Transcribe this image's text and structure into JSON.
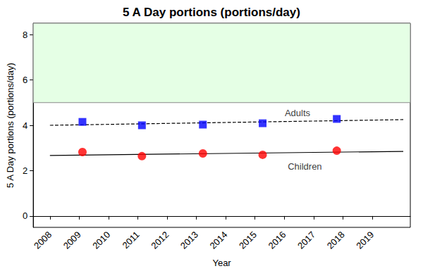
{
  "chart_data": {
    "type": "scatter",
    "title": "5 A Day portions (portions/day)",
    "x_label": "Year",
    "y_label": "5 A Day portions (portions/day)",
    "xlim": [
      2007.43,
      2020.3
    ],
    "xticks": [
      2008,
      2009,
      2010,
      2011,
      2012,
      2013,
      2014,
      2015,
      2016,
      2017,
      2018,
      2019
    ],
    "ylim": [
      -0.5,
      8.5
    ],
    "yticks": [
      0,
      2,
      4,
      6,
      8
    ],
    "grid": false,
    "band": {
      "from": 5,
      "to": 8.5,
      "color": "#e5ffe5"
    },
    "series": [
      {
        "type": "scatter",
        "marker": "square",
        "color": "#0000ff",
        "x": [
          2009.11,
          2011.14,
          2013.22,
          2015.26,
          2017.79
        ],
        "values": [
          4.15,
          4.0,
          4.03,
          4.09,
          4.28
        ]
      },
      {
        "type": "line",
        "line_style": "dashed",
        "color": "#000000",
        "x": [
          2008,
          2020.06
        ],
        "values": [
          4.0,
          4.25
        ]
      },
      {
        "type": "scatter",
        "marker": "circle",
        "color": "#ff0000",
        "x": [
          2009.11,
          2011.14,
          2013.22,
          2015.26,
          2017.79
        ],
        "values": [
          2.82,
          2.64,
          2.76,
          2.7,
          2.88
        ]
      },
      {
        "type": "line",
        "line_style": "solid",
        "color": "#000000",
        "x": [
          2008,
          2020.06
        ],
        "values": [
          2.67,
          2.85
        ]
      }
    ],
    "annotations": [
      {
        "text": "Adults",
        "x": 2016.45,
        "y": 4.55
      },
      {
        "text": "Children",
        "x": 2016.7,
        "y": 2.2
      }
    ]
  }
}
